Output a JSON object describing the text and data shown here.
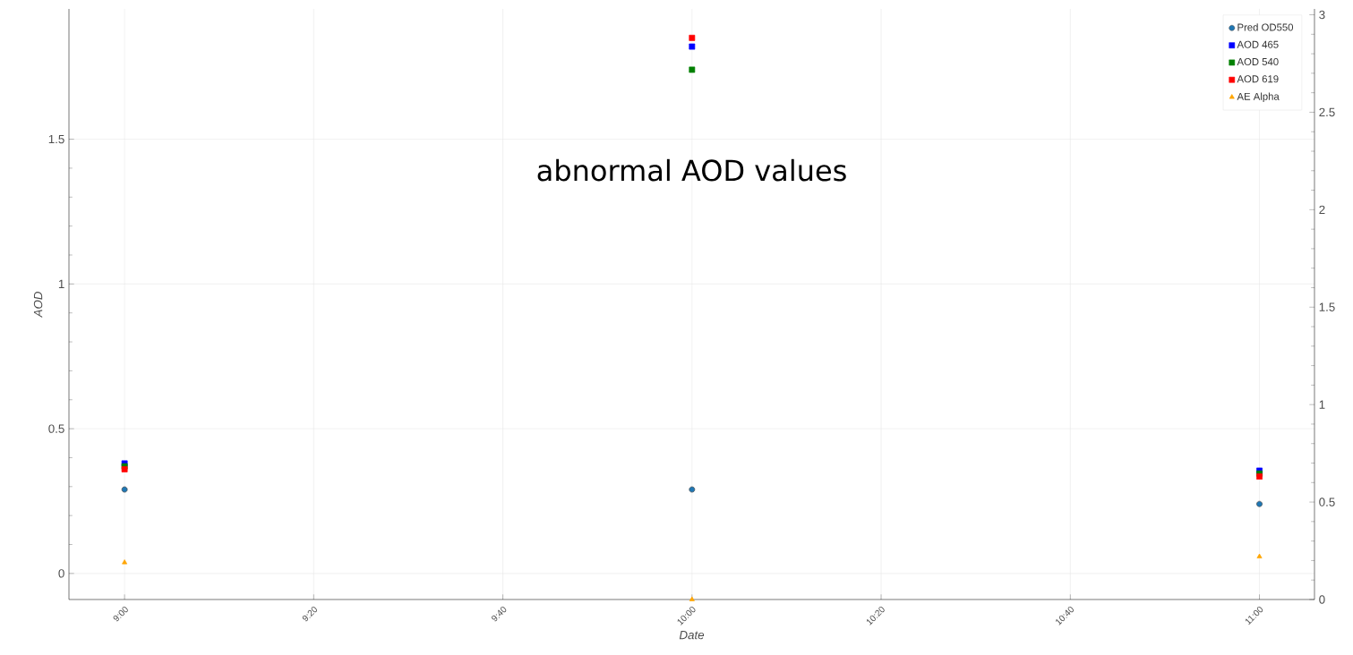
{
  "chart_data": {
    "type": "scatter",
    "xlabel": "Date",
    "ylabel": "AOD",
    "x": [
      9,
      10,
      11
    ],
    "series": [
      {
        "name": "Pred OD550",
        "color": "#1f77b4",
        "marker": "circle",
        "values": [
          0.29,
          0.29,
          0.24
        ]
      },
      {
        "name": "AOD 465",
        "color": "#0000ff",
        "marker": "square",
        "values": [
          0.38,
          1.82,
          0.355
        ]
      },
      {
        "name": "AOD 540",
        "color": "#008000",
        "marker": "square",
        "values": [
          0.37,
          1.74,
          0.345
        ]
      },
      {
        "name": "AOD 619",
        "color": "#ff0000",
        "marker": "square",
        "values": [
          0.36,
          1.85,
          0.335
        ]
      },
      {
        "name": "AE Alpha",
        "color": "#ffa500",
        "marker": "triangle",
        "axis": "y2",
        "values": [
          0.19,
          0.0,
          0.22
        ]
      }
    ],
    "xlim": [
      8.902,
      11.097
    ],
    "xticks": [
      {
        "value": 9,
        "label": "9:00"
      },
      {
        "value": 9.3333,
        "label": "9:20"
      },
      {
        "value": 9.6667,
        "label": "9:40"
      },
      {
        "value": 10,
        "label": "10:00"
      },
      {
        "value": 10.3333,
        "label": "10:20"
      },
      {
        "value": 10.6667,
        "label": "10:40"
      },
      {
        "value": 11,
        "label": "11:00"
      }
    ],
    "ylim": [
      -0.09,
      1.95
    ],
    "yticks": [
      0,
      0.5,
      1,
      1.5
    ],
    "y2lim": [
      0,
      3.03
    ],
    "y2ticks": [
      0,
      0.5,
      1,
      1.5,
      2,
      2.5,
      3
    ],
    "grid": true,
    "legend": "top right",
    "annotations": [
      "abnormal AOD values"
    ]
  }
}
